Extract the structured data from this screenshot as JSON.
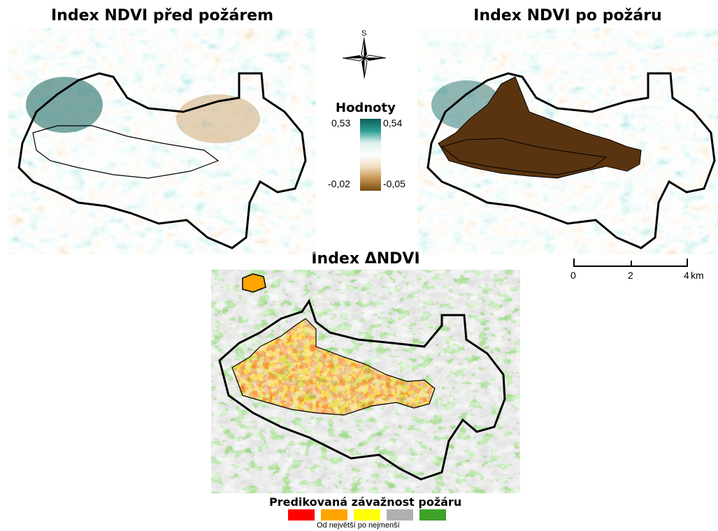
{
  "panels": {
    "before": {
      "title": "Index NDVI před požárem"
    },
    "after": {
      "title": "Index NDVI po požáru"
    },
    "delta": {
      "title": "Index ΔNDVI"
    }
  },
  "north_arrow": {
    "label": "S"
  },
  "ndvi_legend": {
    "title": "Hodnoty",
    "before_max": "0,53",
    "after_max": "0,54",
    "before_min": "-0,02",
    "after_min": "-0,05",
    "ramp_colors": [
      "#0c5f5a",
      "#2f9e95",
      "#d9f0ec",
      "#ffffff",
      "#f0dcbf",
      "#c79553",
      "#7a4a14"
    ]
  },
  "scale_bar": {
    "ticks": [
      "0",
      "2",
      "4"
    ],
    "unit": "km"
  },
  "severity_legend": {
    "title": "Predikovaná závažnost požáru",
    "note": "Od největší po nejmenší",
    "colors": [
      "#ff0000",
      "#ffa500",
      "#ffff00",
      "#b0b0b0",
      "#3fa32a"
    ]
  }
}
